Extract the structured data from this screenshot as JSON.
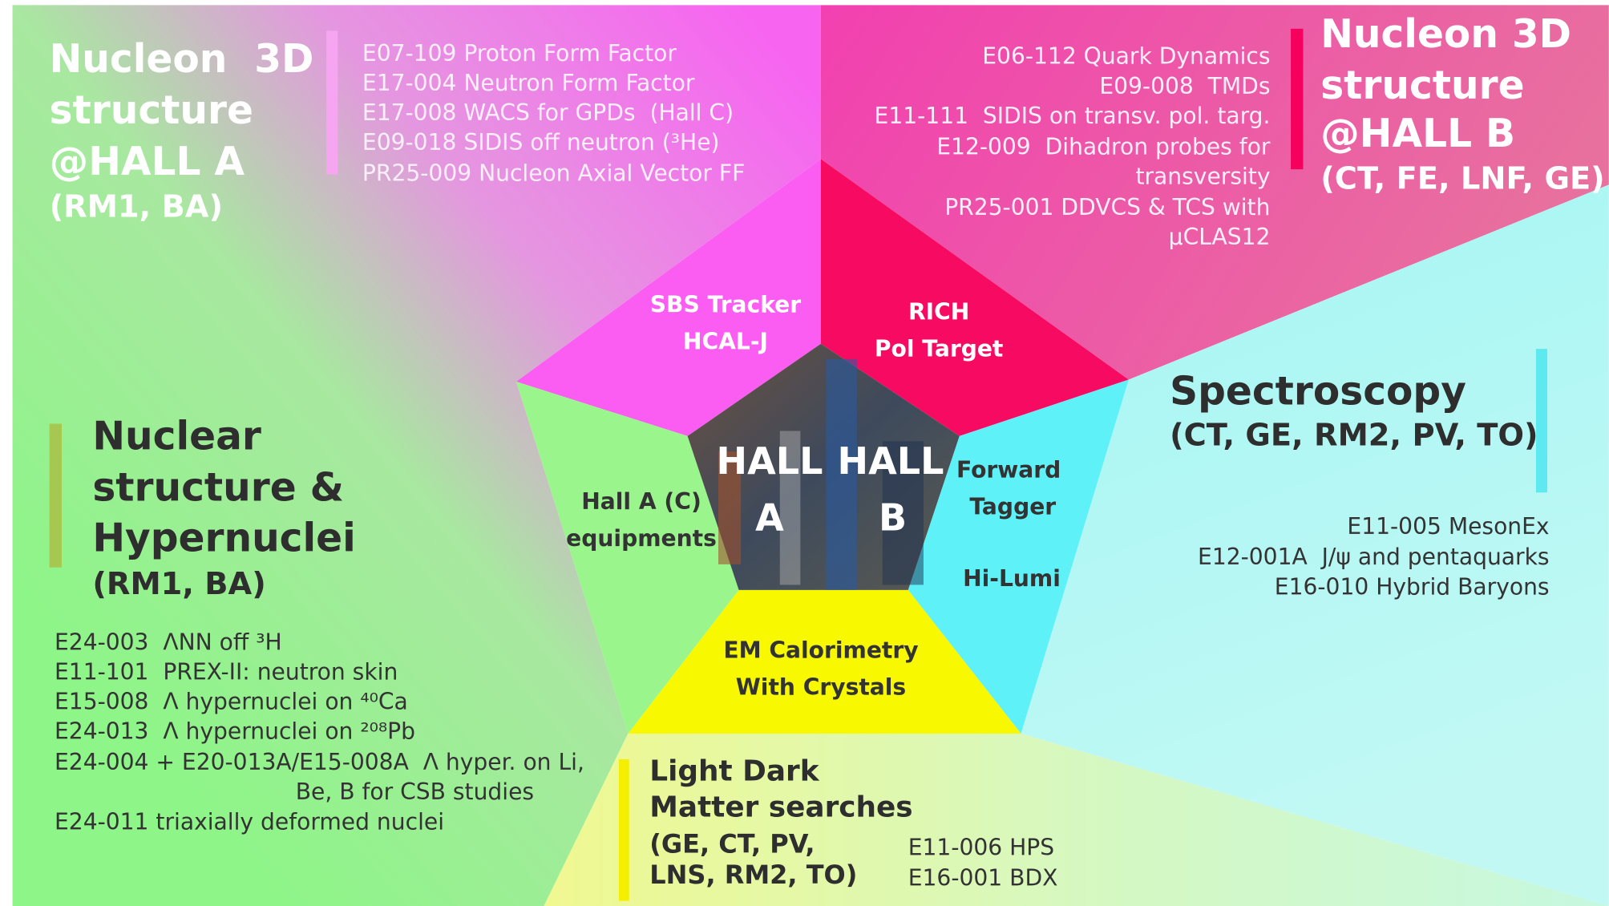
{
  "hall_a": {
    "title_lines": [
      "Nucleon  3D",
      "structure",
      "@HALL A"
    ],
    "groups": "(RM1, BA)",
    "experiments": [
      "E07-109 Proton Form Factor",
      "E17-004 Neutron Form Factor",
      "E17-008 WACS for GPDs  (Hall C)",
      "E09-018 SIDIS off neutron (³He)",
      "PR25-009 Nucleon Axial Vector FF"
    ]
  },
  "hall_b": {
    "title_lines": [
      "Nucleon 3D",
      "structure",
      "@HALL B"
    ],
    "groups": "(CT, FE, LNF, GE)",
    "experiments": [
      "E06-112 Quark Dynamics",
      "E09-008  TMDs",
      "E11-111  SIDIS on transv. pol. targ.",
      "E12-009  Dihadron probes for",
      "transversity",
      "PR25-001 DDVCS & TCS with",
      "μCLAS12"
    ]
  },
  "spectroscopy": {
    "title": "Spectroscopy",
    "groups": "(CT, GE, RM2, PV, TO)",
    "experiments": [
      "E11-005 MesonEx",
      "E12-001A  J/ψ and pentaquarks",
      "E16-010 Hybrid Baryons"
    ]
  },
  "nuclear": {
    "title_lines": [
      "Nuclear",
      "structure &",
      "Hypernuclei"
    ],
    "groups": "(RM1, BA)",
    "experiments": [
      "E24-003  ΛNN off ³H",
      "E11-101  PREX-II: neutron skin",
      "E15-008  Λ hypernuclei on ⁴⁰Ca",
      "E24-013  Λ hypernuclei on ²⁰⁸Pb",
      "E24-004 + E20-013A/E15-008A  Λ hyper. on Li,",
      "Be, B for CSB studies",
      "E24-011 triaxially deformed nuclei"
    ]
  },
  "light_dark": {
    "title_lines": [
      "Light Dark",
      "Matter searches"
    ],
    "group_lines": [
      "(GE, CT, PV,",
      "LNS, RM2, TO)"
    ],
    "experiments": [
      "E11-006 HPS",
      "E16-001 BDX"
    ]
  },
  "pentagon": {
    "segments": [
      {
        "lines": [
          "SBS Tracker",
          "HCAL-J"
        ]
      },
      {
        "lines": [
          "RICH",
          "Pol Target"
        ]
      },
      {
        "lines": [
          "Forward",
          "Tagger",
          "Hi-Lumi"
        ]
      },
      {
        "lines": [
          "EM Calorimetry",
          "With Crystals"
        ]
      },
      {
        "lines": [
          "Hall A (C)",
          "equipments"
        ]
      }
    ],
    "center": {
      "hall_a": [
        "HALL",
        "A"
      ],
      "hall_b": [
        "HALL",
        "B"
      ]
    }
  }
}
